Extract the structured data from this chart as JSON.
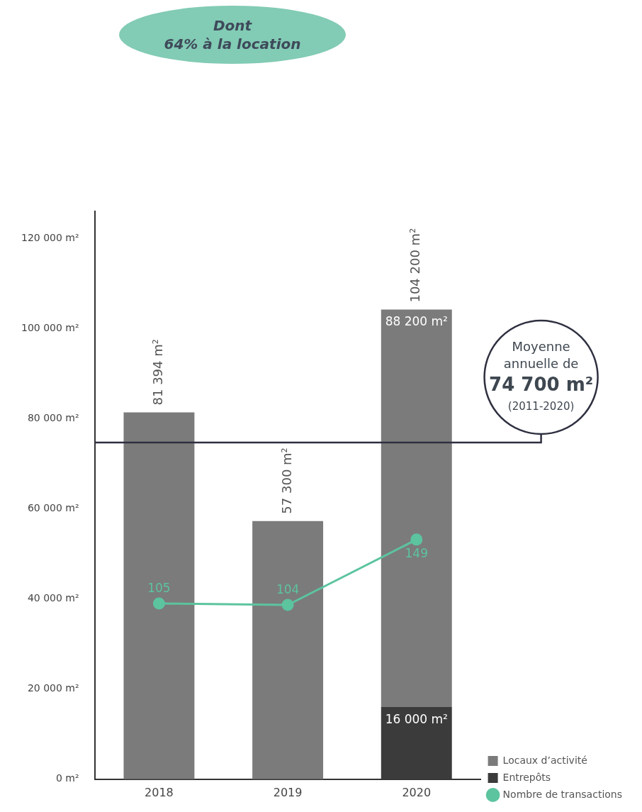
{
  "chart_data": {
    "type": "bar",
    "stacked": true,
    "categories": [
      "2018",
      "2019",
      "2020"
    ],
    "series": [
      {
        "name": "Entrepôts",
        "color": "#3b3b3b",
        "values": [
          null,
          null,
          16000
        ],
        "value_labels": [
          null,
          null,
          "16 000 m²"
        ]
      },
      {
        "name": "Locaux d’activité",
        "color": "#7b7b7b",
        "values": [
          81394,
          57300,
          88200
        ],
        "value_labels": [
          "81 394 m²",
          "57 300 m²",
          "88 200 m²"
        ]
      },
      {
        "name": "Nombre de transactions",
        "type": "line",
        "axis": "y2",
        "color": "#5cc49f",
        "values": [
          105,
          104,
          149
        ],
        "value_labels": [
          "105",
          "104",
          "149"
        ]
      }
    ],
    "totals": [
      null,
      null,
      "104 200 m²"
    ],
    "ylim": [
      0,
      126000
    ],
    "yticks": [
      {
        "value": 0,
        "label": "0 m²"
      },
      {
        "value": 20000,
        "label": "20 000 m²"
      },
      {
        "value": 40000,
        "label": "40 000 m²"
      },
      {
        "value": 60000,
        "label": "60 000 m²"
      },
      {
        "value": 80000,
        "label": "80 000 m²"
      },
      {
        "value": 100000,
        "label": "100 000 m²"
      },
      {
        "value": 120000,
        "label": "120 000 m²"
      }
    ],
    "y2lim": [
      -16,
      375
    ],
    "marker": "circle",
    "grid": false,
    "legend": "bottom right",
    "ref_lines": [
      {
        "axis": "y",
        "value": 74700,
        "label": "Moyenne\nannuelle de\n74 700 m²\n(2011-2020)",
        "color": "#2e3040"
      }
    ],
    "annotations": [
      "Dont\n64% à la location"
    ]
  }
}
